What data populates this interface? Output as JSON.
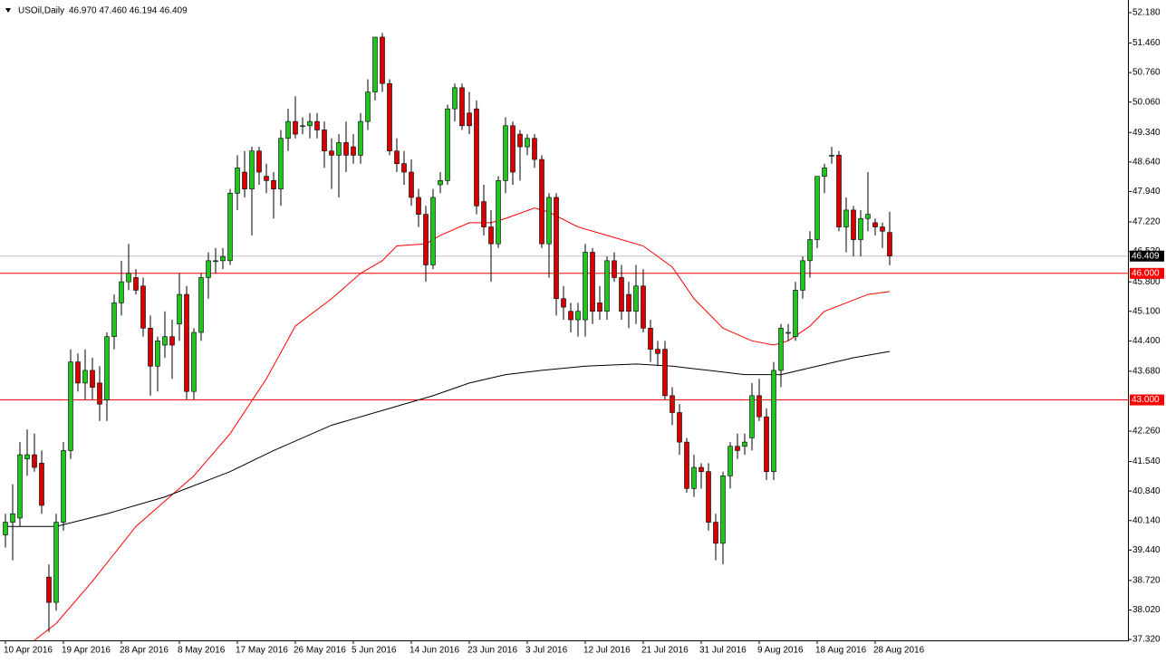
{
  "chart_data": {
    "type": "candlestick",
    "header": {
      "symbol": "USOil,Daily",
      "ohlc": "46.970 47.460 46.194 46.409"
    },
    "categories": [
      "10 Apr 2016",
      null,
      null,
      null,
      null,
      null,
      null,
      null,
      "19 Apr 2016",
      null,
      null,
      null,
      null,
      null,
      null,
      null,
      "28 Apr 2016",
      null,
      null,
      null,
      null,
      null,
      null,
      null,
      "8 May 2016",
      null,
      null,
      null,
      null,
      null,
      null,
      null,
      "17 May 2016",
      null,
      null,
      null,
      null,
      null,
      null,
      null,
      "26 May 2016",
      null,
      null,
      null,
      null,
      null,
      null,
      null,
      "5 Jun 2016",
      null,
      null,
      null,
      null,
      null,
      null,
      null,
      "14 Jun 2016",
      null,
      null,
      null,
      null,
      null,
      null,
      null,
      "23 Jun 2016",
      null,
      null,
      null,
      null,
      null,
      null,
      null,
      "3 Jul 2016",
      null,
      null,
      null,
      null,
      null,
      null,
      null,
      "12 Jul 2016",
      null,
      null,
      null,
      null,
      null,
      null,
      null,
      "21 Jul 2016",
      null,
      null,
      null,
      null,
      null,
      null,
      null,
      "31 Jul 2016",
      null,
      null,
      null,
      null,
      null,
      null,
      null,
      "9 Aug 2016",
      null,
      null,
      null,
      null,
      null,
      null,
      null,
      "18 Aug 2016",
      null,
      null,
      null,
      null,
      null,
      null,
      null,
      "28 Aug 2016",
      null,
      null
    ],
    "open": [
      39.8,
      40.1,
      40.2,
      41.6,
      41.7,
      41.5,
      38.8,
      38.2,
      40.1,
      41.8,
      43.9,
      43.4,
      43.7,
      43.4,
      43.0,
      44.5,
      45.3,
      45.8,
      45.9,
      45.7,
      44.7,
      43.8,
      44.3,
      44.5,
      44.8,
      45.5,
      43.2,
      44.6,
      45.9,
      46.3,
      46.3,
      46.3,
      47.9,
      48.4,
      48.0,
      48.9,
      48.3,
      48.2,
      48.0,
      49.2,
      49.6,
      49.5,
      49.5,
      49.6,
      49.4,
      48.9,
      48.8,
      49.1,
      49.0,
      48.8,
      49.6,
      50.3,
      51.6,
      50.5,
      48.9,
      48.6,
      48.4,
      47.8,
      47.4,
      46.2,
      48.1,
      48.2,
      49.9,
      50.4,
      49.8,
      49.9,
      47.7,
      47.1,
      46.7,
      48.2,
      49.5,
      49.3,
      49.0,
      49.2,
      48.7,
      46.7,
      47.8,
      45.4,
      45.1,
      44.9,
      44.9,
      46.5,
      45.3,
      45.1,
      46.3,
      45.9,
      45.5,
      45.1,
      45.7,
      44.7,
      44.2,
      44.2,
      43.1,
      42.7,
      42.0,
      40.9,
      41.4,
      41.3,
      40.1,
      39.6,
      41.2,
      41.9,
      41.9,
      42.1,
      43.1,
      42.6,
      41.3,
      43.7,
      44.6,
      44.5,
      45.6,
      46.3,
      46.8,
      48.3,
      48.8,
      48.8,
      47.1,
      47.5,
      46.8,
      47.3,
      47.2,
      47.1,
      46.97
    ],
    "high": [
      40.3,
      41.0,
      42.0,
      42.3,
      42.2,
      41.8,
      39.1,
      40.3,
      42.0,
      44.2,
      44.1,
      44.2,
      44.0,
      43.8,
      44.6,
      45.5,
      46.3,
      46.7,
      46.1,
      45.9,
      45.0,
      44.5,
      45.1,
      44.9,
      46.0,
      45.7,
      44.7,
      46.0,
      46.5,
      46.6,
      46.6,
      48.0,
      48.8,
      48.9,
      49.0,
      49.0,
      48.6,
      48.4,
      49.4,
      49.9,
      50.2,
      49.7,
      49.8,
      49.8,
      49.6,
      49.2,
      49.3,
      49.6,
      49.3,
      49.8,
      50.6,
      51.6,
      51.7,
      50.6,
      49.2,
      48.9,
      48.7,
      48.0,
      47.6,
      48.0,
      48.4,
      50.0,
      50.5,
      50.5,
      50.3,
      50.1,
      48.1,
      47.5,
      48.3,
      49.7,
      49.6,
      49.4,
      49.3,
      49.3,
      48.8,
      47.9,
      47.9,
      45.7,
      45.3,
      45.3,
      46.7,
      46.6,
      45.7,
      46.4,
      46.5,
      46.2,
      45.8,
      46.2,
      46.1,
      44.9,
      44.4,
      44.4,
      43.3,
      42.9,
      42.1,
      41.7,
      41.5,
      41.5,
      40.3,
      41.3,
      42.0,
      42.2,
      42.2,
      43.4,
      43.5,
      42.8,
      43.9,
      44.8,
      44.8,
      45.8,
      46.4,
      47.0,
      48.3,
      48.6,
      49.0,
      48.9,
      47.8,
      47.6,
      47.5,
      48.4,
      47.3,
      47.2,
      47.46
    ],
    "low": [
      39.5,
      39.2,
      40.0,
      41.2,
      41.3,
      40.3,
      37.5,
      38.0,
      39.9,
      41.6,
      43.2,
      43.0,
      43.0,
      42.5,
      42.5,
      44.2,
      45.0,
      45.6,
      45.5,
      44.5,
      43.1,
      43.2,
      44.0,
      43.5,
      44.4,
      43.0,
      43.0,
      44.4,
      45.4,
      46.0,
      46.1,
      46.2,
      47.5,
      47.8,
      46.9,
      48.1,
      47.9,
      47.3,
      47.6,
      48.9,
      49.2,
      49.3,
      49.2,
      49.2,
      48.5,
      48.0,
      47.8,
      48.4,
      48.6,
      48.6,
      49.4,
      50.1,
      50.3,
      48.8,
      48.4,
      48.1,
      47.6,
      47.1,
      45.8,
      46.1,
      47.9,
      48.1,
      49.6,
      49.4,
      49.3,
      47.4,
      46.9,
      45.8,
      46.6,
      47.9,
      48.1,
      48.2,
      48.8,
      48.5,
      46.6,
      45.9,
      45.0,
      44.9,
      44.6,
      44.5,
      44.5,
      44.8,
      44.9,
      44.9,
      45.8,
      44.9,
      44.7,
      44.8,
      44.6,
      43.9,
      43.8,
      43.0,
      42.4,
      41.7,
      40.8,
      40.7,
      40.9,
      39.9,
      39.2,
      39.1,
      40.9,
      41.6,
      41.7,
      41.8,
      42.5,
      41.1,
      41.1,
      43.3,
      44.4,
      44.4,
      45.4,
      45.9,
      46.6,
      47.9,
      48.6,
      47.0,
      46.5,
      46.4,
      46.4,
      47.0,
      46.9,
      46.6,
      46.194
    ],
    "close": [
      40.1,
      40.3,
      41.7,
      41.7,
      41.4,
      40.5,
      38.2,
      40.1,
      41.8,
      43.9,
      43.4,
      43.7,
      43.3,
      42.9,
      44.5,
      45.3,
      45.8,
      46.0,
      45.6,
      44.7,
      43.8,
      44.4,
      44.5,
      44.3,
      45.5,
      43.2,
      44.6,
      45.9,
      46.3,
      46.3,
      46.4,
      47.9,
      48.5,
      48.0,
      48.9,
      48.4,
      48.2,
      48.0,
      49.2,
      49.6,
      49.3,
      49.5,
      49.6,
      49.4,
      48.9,
      48.8,
      49.1,
      48.8,
      48.8,
      49.6,
      50.3,
      51.6,
      50.5,
      48.9,
      48.6,
      48.4,
      47.8,
      47.4,
      46.2,
      47.8,
      48.2,
      49.9,
      50.4,
      49.5,
      49.5,
      47.6,
      47.1,
      46.7,
      48.2,
      49.5,
      48.4,
      49.0,
      49.2,
      48.7,
      46.7,
      47.8,
      45.4,
      45.2,
      44.9,
      45.1,
      46.5,
      45.1,
      45.1,
      46.3,
      45.9,
      45.1,
      45.1,
      45.7,
      44.7,
      44.2,
      44.1,
      43.1,
      42.7,
      42.0,
      40.9,
      41.4,
      41.3,
      40.1,
      39.6,
      41.2,
      41.9,
      41.8,
      42.0,
      43.1,
      42.6,
      41.3,
      43.7,
      44.7,
      44.6,
      45.6,
      46.3,
      46.8,
      48.3,
      48.5,
      48.8,
      47.1,
      47.5,
      46.8,
      47.3,
      47.4,
      47.1,
      47.0,
      46.409
    ],
    "up_color": "#22c322",
    "down_color": "#d40000",
    "lines": [
      {
        "color": "#ff0000",
        "x": [
          4,
          7,
          12,
          18,
          22,
          26,
          31,
          36,
          40,
          45,
          49,
          52,
          54,
          58,
          60,
          64,
          67,
          69,
          73,
          75,
          79,
          83,
          88,
          92,
          95,
          99,
          103,
          106,
          108,
          111,
          113,
          116,
          119,
          122
        ],
        "values": [
          37.3,
          37.7,
          38.7,
          40.0,
          40.6,
          41.2,
          42.2,
          43.5,
          44.75,
          45.4,
          46.0,
          46.3,
          46.65,
          46.7,
          46.9,
          47.2,
          47.2,
          47.3,
          47.55,
          47.45,
          47.1,
          46.9,
          46.65,
          46.15,
          45.4,
          44.7,
          44.4,
          44.3,
          44.4,
          44.75,
          45.1,
          45.3,
          45.5,
          45.57
        ]
      },
      {
        "color": "#000000",
        "x": [
          0,
          7,
          14,
          22,
          31,
          37,
          45,
          53,
          59,
          64,
          69,
          74,
          80,
          87,
          92,
          97,
          102,
          107,
          112,
          117,
          122
        ],
        "values": [
          40.0,
          40.0,
          40.3,
          40.7,
          41.3,
          41.8,
          42.4,
          42.8,
          43.1,
          43.4,
          43.6,
          43.7,
          43.8,
          43.85,
          43.8,
          43.7,
          43.6,
          43.6,
          43.8,
          44.0,
          44.15
        ]
      }
    ],
    "levels": [
      {
        "value": 46.0,
        "label": "46.000",
        "color": "#ff0000"
      },
      {
        "value": 43.0,
        "label": "43.000",
        "color": "#ff0000"
      }
    ],
    "last_price": {
      "value": 46.409,
      "label": "46.409",
      "color": "#c0c0c0"
    },
    "ylim": [
      37.3,
      52.48
    ],
    "yticks": [
      {
        "value": 52.18,
        "label": "52.180"
      },
      {
        "value": 51.46,
        "label": "51.460"
      },
      {
        "value": 50.76,
        "label": "50.760"
      },
      {
        "value": 50.06,
        "label": "50.060"
      },
      {
        "value": 49.34,
        "label": "49.340"
      },
      {
        "value": 48.64,
        "label": "48.640"
      },
      {
        "value": 47.94,
        "label": "47.940"
      },
      {
        "value": 47.22,
        "label": "47.220"
      },
      {
        "value": 46.52,
        "label": "46.520"
      },
      {
        "value": 45.8,
        "label": "45.800"
      },
      {
        "value": 45.1,
        "label": "45.100"
      },
      {
        "value": 44.4,
        "label": "44.400"
      },
      {
        "value": 43.68,
        "label": "43.680"
      },
      {
        "value": 42.26,
        "label": "42.260"
      },
      {
        "value": 41.54,
        "label": "41.540"
      },
      {
        "value": 40.84,
        "label": "40.840"
      },
      {
        "value": 40.14,
        "label": "40.140"
      },
      {
        "value": 39.44,
        "label": "39.440"
      },
      {
        "value": 38.72,
        "label": "38.720"
      },
      {
        "value": 38.02,
        "label": "38.020"
      },
      {
        "value": 37.32,
        "label": "37.320"
      }
    ]
  }
}
